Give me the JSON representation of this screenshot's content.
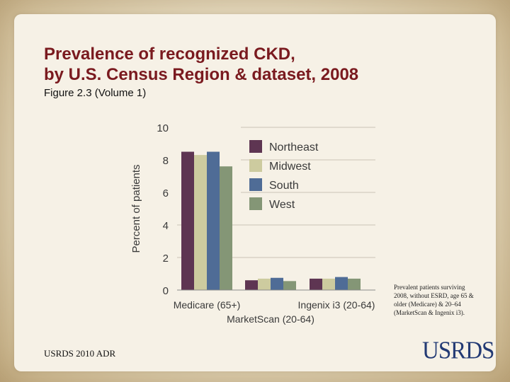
{
  "slide": {
    "title": "Prevalence of recognized CKD,\nby U.S. Census Region & dataset, 2008",
    "subtitle": "Figure 2.3 (Volume 1)",
    "note": "Prevalent patients surviving 2008, without ESRD, age 65 & older (Medicare) & 20–64 (MarketScan & Ingenix i3).",
    "footer": "USRDS 2010 ADR",
    "logo": "USRDS"
  },
  "colors": {
    "northeast": "#5e3552",
    "midwest": "#cdcb9f",
    "south": "#4f6c96",
    "west": "#849676",
    "title": "#7a1a1f",
    "logo": "#233a74"
  },
  "chart_data": {
    "type": "bar",
    "title": "",
    "xlabel": "",
    "ylabel": "Percent of patients",
    "ylim": [
      0,
      10
    ],
    "yticks": [
      0,
      2,
      4,
      6,
      8,
      10
    ],
    "grid": true,
    "legend_position": "top-right",
    "categories": [
      "Medicare (65+)",
      "MarketScan (20-64)",
      "Ingenix i3 (20-64)"
    ],
    "series": [
      {
        "name": "Northeast",
        "color": "#5e3552",
        "values": [
          8.5,
          0.6,
          0.7
        ]
      },
      {
        "name": "Midwest",
        "color": "#cdcb9f",
        "values": [
          8.3,
          0.7,
          0.7
        ]
      },
      {
        "name": "South",
        "color": "#4f6c96",
        "values": [
          8.5,
          0.75,
          0.8
        ]
      },
      {
        "name": "West",
        "color": "#849676",
        "values": [
          7.6,
          0.55,
          0.7
        ]
      }
    ]
  }
}
